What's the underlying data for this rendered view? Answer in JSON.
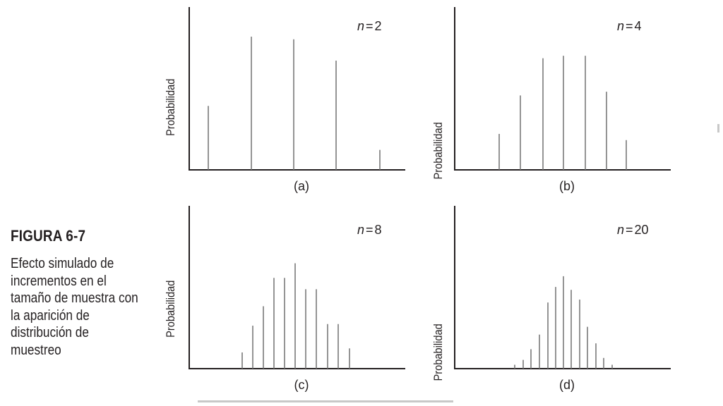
{
  "figure": {
    "label": "FIGURA 6-7",
    "caption": "Efecto simulado de incrementos en el tamaño de muestra con la aparición de distribución de muestreo"
  },
  "colors": {
    "axis": "#231f20",
    "bars": "#7a7a7a",
    "rule": "#c8c8c8"
  },
  "chart_data": [
    {
      "type": "bar",
      "panel": "(a)",
      "ylabel": "Probabilidad",
      "n_label": "2",
      "values": [
        0.48,
        1.0,
        0.98,
        0.82,
        0.15
      ],
      "ylim": [
        0,
        1.1
      ]
    },
    {
      "type": "bar",
      "panel": "(b)",
      "ylabel": "Probabilidad",
      "n_label": "4",
      "values": [
        0.29,
        0.6,
        0.9,
        0.92,
        0.92,
        0.63,
        0.24
      ],
      "ylim": [
        0,
        1.1
      ]
    },
    {
      "type": "bar",
      "panel": "(c)",
      "ylabel": "Probabilidad",
      "n_label": "8",
      "values": [
        0.2,
        0.53,
        0.77,
        1.12,
        1.12,
        1.3,
        0.98,
        0.98,
        0.55,
        0.55,
        0.25
      ],
      "ylim": [
        0,
        1.6
      ]
    },
    {
      "type": "bar",
      "panel": "(d)",
      "ylabel": "Probabilidad",
      "n_label": "20",
      "values": [
        0.04,
        0.09,
        0.2,
        0.35,
        0.68,
        0.84,
        0.95,
        0.81,
        0.71,
        0.43,
        0.26,
        0.11,
        0.04
      ],
      "ylim": [
        0,
        1.6
      ]
    }
  ]
}
